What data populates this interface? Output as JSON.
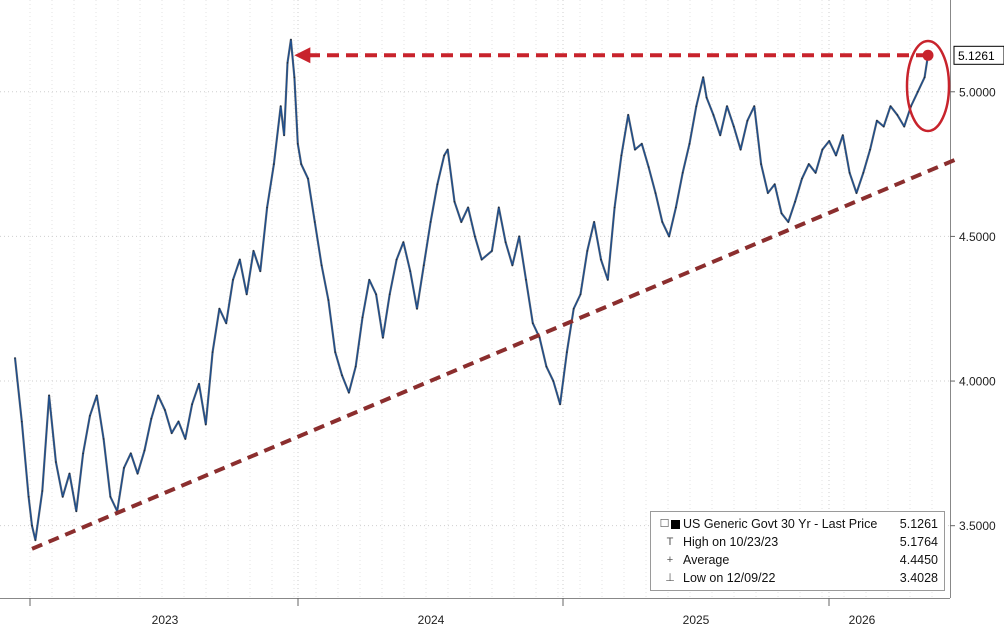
{
  "chart_data": {
    "type": "line",
    "x_tick_labels": [
      "2023",
      "2024",
      "2025",
      "2026"
    ],
    "y_ticks": [
      3.5,
      4.0,
      4.5,
      5.0
    ],
    "y_tick_labels": [
      "3.5000",
      "4.0000",
      "4.5000",
      "5.0000"
    ],
    "ylim": [
      3.25,
      5.3
    ],
    "y_axis_side": "right",
    "grid": true,
    "last_value_label": "5.1261",
    "series": [
      {
        "name": "US Generic Govt 30 Yr - Last Price",
        "color": "#1f4e8c",
        "points": [
          {
            "x": 0.0,
            "y": 4.08
          },
          {
            "x": 0.02,
            "y": 3.86
          },
          {
            "x": 0.04,
            "y": 3.6
          },
          {
            "x": 0.05,
            "y": 3.5
          },
          {
            "x": 0.06,
            "y": 3.45
          },
          {
            "x": 0.08,
            "y": 3.62
          },
          {
            "x": 0.1,
            "y": 3.95
          },
          {
            "x": 0.12,
            "y": 3.72
          },
          {
            "x": 0.14,
            "y": 3.6
          },
          {
            "x": 0.16,
            "y": 3.68
          },
          {
            "x": 0.18,
            "y": 3.55
          },
          {
            "x": 0.2,
            "y": 3.75
          },
          {
            "x": 0.22,
            "y": 3.88
          },
          {
            "x": 0.24,
            "y": 3.95
          },
          {
            "x": 0.26,
            "y": 3.8
          },
          {
            "x": 0.28,
            "y": 3.6
          },
          {
            "x": 0.3,
            "y": 3.55
          },
          {
            "x": 0.32,
            "y": 3.7
          },
          {
            "x": 0.34,
            "y": 3.75
          },
          {
            "x": 0.36,
            "y": 3.68
          },
          {
            "x": 0.38,
            "y": 3.76
          },
          {
            "x": 0.4,
            "y": 3.87
          },
          {
            "x": 0.42,
            "y": 3.95
          },
          {
            "x": 0.44,
            "y": 3.9
          },
          {
            "x": 0.46,
            "y": 3.82
          },
          {
            "x": 0.48,
            "y": 3.86
          },
          {
            "x": 0.5,
            "y": 3.8
          },
          {
            "x": 0.52,
            "y": 3.92
          },
          {
            "x": 0.54,
            "y": 3.99
          },
          {
            "x": 0.56,
            "y": 3.85
          },
          {
            "x": 0.58,
            "y": 4.1
          },
          {
            "x": 0.6,
            "y": 4.25
          },
          {
            "x": 0.62,
            "y": 4.2
          },
          {
            "x": 0.64,
            "y": 4.35
          },
          {
            "x": 0.66,
            "y": 4.42
          },
          {
            "x": 0.68,
            "y": 4.3
          },
          {
            "x": 0.7,
            "y": 4.45
          },
          {
            "x": 0.72,
            "y": 4.38
          },
          {
            "x": 0.74,
            "y": 4.6
          },
          {
            "x": 0.76,
            "y": 4.75
          },
          {
            "x": 0.78,
            "y": 4.95
          },
          {
            "x": 0.79,
            "y": 4.85
          },
          {
            "x": 0.8,
            "y": 5.1
          },
          {
            "x": 0.81,
            "y": 5.18
          },
          {
            "x": 0.82,
            "y": 5.05
          },
          {
            "x": 0.83,
            "y": 4.82
          },
          {
            "x": 0.84,
            "y": 4.75
          },
          {
            "x": 0.86,
            "y": 4.7
          },
          {
            "x": 0.88,
            "y": 4.55
          },
          {
            "x": 0.9,
            "y": 4.4
          },
          {
            "x": 0.92,
            "y": 4.28
          },
          {
            "x": 0.94,
            "y": 4.1
          },
          {
            "x": 0.96,
            "y": 4.02
          },
          {
            "x": 0.98,
            "y": 3.96
          },
          {
            "x": 1.0,
            "y": 4.05
          },
          {
            "x": 1.02,
            "y": 4.22
          },
          {
            "x": 1.04,
            "y": 4.35
          },
          {
            "x": 1.06,
            "y": 4.3
          },
          {
            "x": 1.08,
            "y": 4.15
          },
          {
            "x": 1.1,
            "y": 4.3
          },
          {
            "x": 1.12,
            "y": 4.42
          },
          {
            "x": 1.14,
            "y": 4.48
          },
          {
            "x": 1.16,
            "y": 4.38
          },
          {
            "x": 1.18,
            "y": 4.25
          },
          {
            "x": 1.2,
            "y": 4.4
          },
          {
            "x": 1.22,
            "y": 4.55
          },
          {
            "x": 1.24,
            "y": 4.68
          },
          {
            "x": 1.26,
            "y": 4.78
          },
          {
            "x": 1.27,
            "y": 4.8
          },
          {
            "x": 1.29,
            "y": 4.62
          },
          {
            "x": 1.31,
            "y": 4.55
          },
          {
            "x": 1.33,
            "y": 4.6
          },
          {
            "x": 1.35,
            "y": 4.5
          },
          {
            "x": 1.37,
            "y": 4.42
          },
          {
            "x": 1.4,
            "y": 4.45
          },
          {
            "x": 1.42,
            "y": 4.6
          },
          {
            "x": 1.44,
            "y": 4.48
          },
          {
            "x": 1.46,
            "y": 4.4
          },
          {
            "x": 1.48,
            "y": 4.5
          },
          {
            "x": 1.5,
            "y": 4.35
          },
          {
            "x": 1.52,
            "y": 4.2
          },
          {
            "x": 1.54,
            "y": 4.15
          },
          {
            "x": 1.56,
            "y": 4.05
          },
          {
            "x": 1.58,
            "y": 4.0
          },
          {
            "x": 1.6,
            "y": 3.92
          },
          {
            "x": 1.62,
            "y": 4.1
          },
          {
            "x": 1.64,
            "y": 4.25
          },
          {
            "x": 1.66,
            "y": 4.3
          },
          {
            "x": 1.68,
            "y": 4.45
          },
          {
            "x": 1.7,
            "y": 4.55
          },
          {
            "x": 1.72,
            "y": 4.42
          },
          {
            "x": 1.74,
            "y": 4.35
          },
          {
            "x": 1.76,
            "y": 4.6
          },
          {
            "x": 1.78,
            "y": 4.78
          },
          {
            "x": 1.8,
            "y": 4.92
          },
          {
            "x": 1.82,
            "y": 4.8
          },
          {
            "x": 1.84,
            "y": 4.82
          },
          {
            "x": 1.86,
            "y": 4.74
          },
          {
            "x": 1.88,
            "y": 4.65
          },
          {
            "x": 1.9,
            "y": 4.55
          },
          {
            "x": 1.92,
            "y": 4.5
          },
          {
            "x": 1.94,
            "y": 4.6
          },
          {
            "x": 1.96,
            "y": 4.72
          },
          {
            "x": 1.98,
            "y": 4.82
          },
          {
            "x": 2.0,
            "y": 4.95
          },
          {
            "x": 2.02,
            "y": 5.05
          },
          {
            "x": 2.03,
            "y": 4.98
          },
          {
            "x": 2.05,
            "y": 4.92
          },
          {
            "x": 2.07,
            "y": 4.85
          },
          {
            "x": 2.09,
            "y": 4.95
          },
          {
            "x": 2.11,
            "y": 4.88
          },
          {
            "x": 2.13,
            "y": 4.8
          },
          {
            "x": 2.15,
            "y": 4.9
          },
          {
            "x": 2.17,
            "y": 4.95
          },
          {
            "x": 2.19,
            "y": 4.75
          },
          {
            "x": 2.21,
            "y": 4.65
          },
          {
            "x": 2.23,
            "y": 4.68
          },
          {
            "x": 2.25,
            "y": 4.58
          },
          {
            "x": 2.27,
            "y": 4.55
          },
          {
            "x": 2.29,
            "y": 4.62
          },
          {
            "x": 2.31,
            "y": 4.7
          },
          {
            "x": 2.33,
            "y": 4.75
          },
          {
            "x": 2.35,
            "y": 4.72
          },
          {
            "x": 2.37,
            "y": 4.8
          },
          {
            "x": 2.39,
            "y": 4.83
          },
          {
            "x": 2.41,
            "y": 4.78
          },
          {
            "x": 2.43,
            "y": 4.85
          },
          {
            "x": 2.45,
            "y": 4.72
          },
          {
            "x": 2.47,
            "y": 4.65
          },
          {
            "x": 2.49,
            "y": 4.72
          },
          {
            "x": 2.51,
            "y": 4.8
          },
          {
            "x": 2.53,
            "y": 4.9
          },
          {
            "x": 2.55,
            "y": 4.88
          },
          {
            "x": 2.57,
            "y": 4.95
          },
          {
            "x": 2.59,
            "y": 4.92
          },
          {
            "x": 2.61,
            "y": 4.88
          },
          {
            "x": 2.63,
            "y": 4.95
          },
          {
            "x": 2.65,
            "y": 5.0
          },
          {
            "x": 2.67,
            "y": 5.05
          },
          {
            "x": 2.68,
            "y": 5.1261
          }
        ]
      }
    ],
    "annotations": {
      "trendline": {
        "style": "dashed",
        "color": "#8b2e2e",
        "from": {
          "x": 0.05,
          "y": 3.42
        },
        "to": {
          "x": 2.77,
          "y": 4.77
        }
      },
      "high_arrow": {
        "style": "dashed",
        "color": "#c8232c",
        "from_x": 2.68,
        "to_x": 0.82,
        "y": 5.1261
      },
      "circle": {
        "color": "#c8232c",
        "x": 2.68,
        "y": 5.02
      }
    },
    "legend": {
      "placement": "bottom-right",
      "title": "US Generic Govt 30 Yr - Last Price",
      "title_value": "5.1261",
      "rows": [
        {
          "marker": "T",
          "label": "High on 10/23/23",
          "value": "5.1764"
        },
        {
          "marker": "+",
          "label": "Average",
          "value": "4.4450"
        },
        {
          "marker": "⊥",
          "label": "Low on 12/09/22",
          "value": "3.4028"
        }
      ]
    }
  }
}
